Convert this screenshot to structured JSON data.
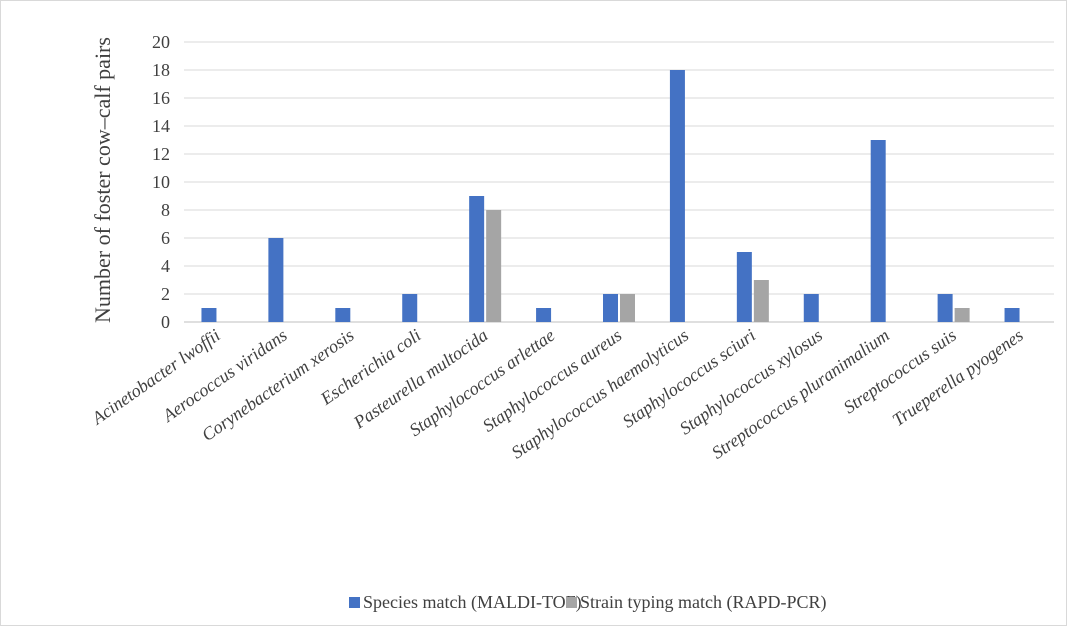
{
  "chart_data": {
    "type": "bar",
    "title": "",
    "ylabel": "Number of foster cow–calf pairs",
    "xlabel": "",
    "ylim": [
      0,
      20
    ],
    "yticks": [
      0,
      2,
      4,
      6,
      8,
      10,
      12,
      14,
      16,
      18,
      20
    ],
    "grid": true,
    "legend_position": "bottom",
    "categories": [
      "Acinetobacter lwoffii",
      "Aerococcus viridans",
      "Corynebacterium xerosis",
      "Escherichia coli",
      "Pasteurella multocida",
      "Staphylococcus arlettae",
      "Staphylococcus aureus",
      "Staphylococcus haemolyticus",
      "Staphylococcus sciuri",
      "Staphylococcus xylosus",
      "Streptococcus pluranimalium",
      "Streptococcus suis",
      "Trueperella pyogenes"
    ],
    "series": [
      {
        "name": "Species match (MALDI-TOF)",
        "color": "#4472c4",
        "values": [
          1,
          6,
          1,
          2,
          9,
          1,
          2,
          18,
          5,
          2,
          13,
          2,
          1
        ]
      },
      {
        "name": "Strain typing match (RAPD-PCR)",
        "color": "#a5a5a5",
        "values": [
          0,
          0,
          0,
          0,
          8,
          0,
          2,
          0,
          3,
          0,
          0,
          1,
          0
        ]
      }
    ]
  }
}
